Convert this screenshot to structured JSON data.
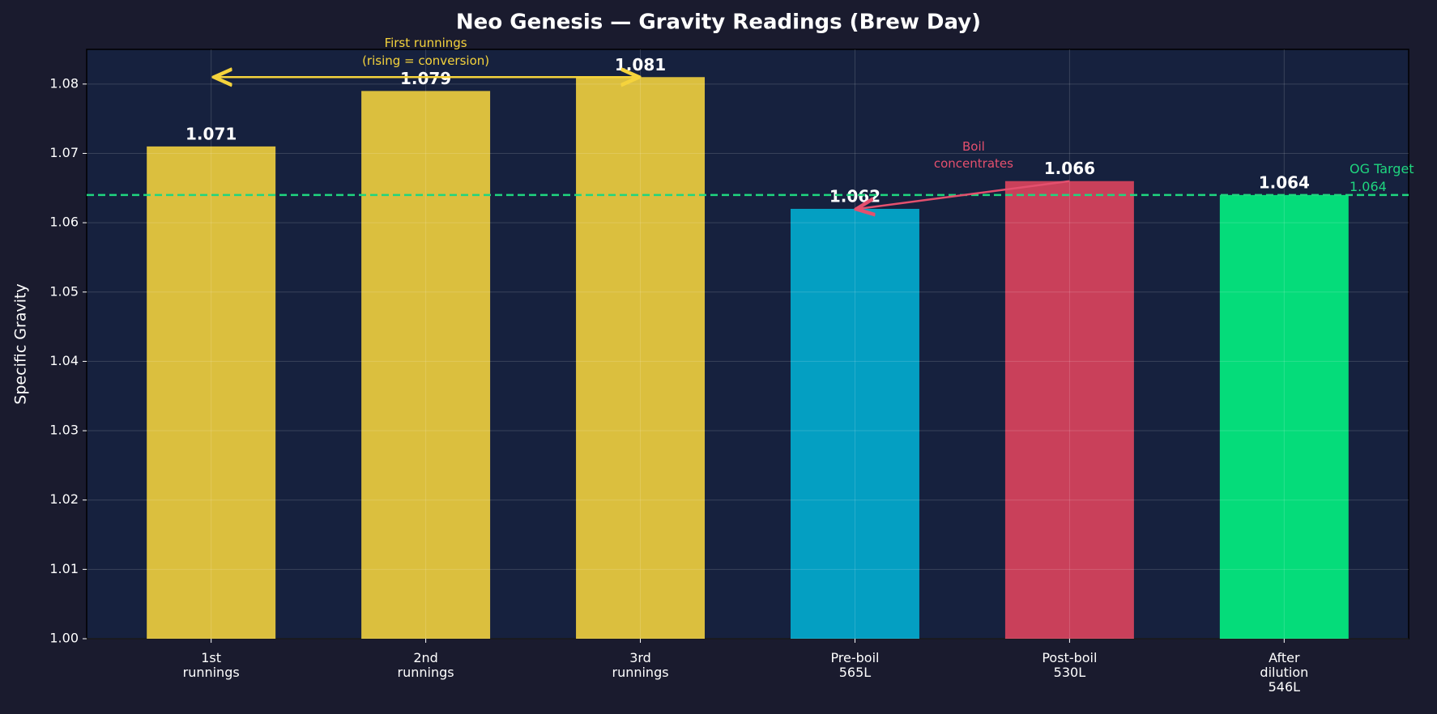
{
  "chart_data": {
    "type": "bar",
    "title": "Neo Genesis — Gravity Readings (Brew Day)",
    "y_label": "Specific Gravity",
    "categories": [
      "1st\nrunnings",
      "2nd\nrunnings",
      "3rd\nrunnings",
      "Pre-boil\n565L",
      "Post-boil\n530L",
      "After\ndilution\n546L"
    ],
    "values": [
      1.071,
      1.079,
      1.081,
      1.062,
      1.066,
      1.064
    ],
    "colors": [
      "#dbbf3e",
      "#dbbf3e",
      "#dbbf3e",
      "#049fc2",
      "#c9405a",
      "#05dc7a"
    ],
    "ylim": [
      1.0,
      1.085
    ],
    "yticks": [
      {
        "value": 1.0,
        "label": "1.00"
      },
      1.01,
      1.02,
      1.03,
      1.04,
      1.05,
      1.06,
      1.07,
      1.08
    ],
    "grid": true,
    "reference_line": {
      "value": 1.064,
      "label": "OG Target",
      "color": "#1fd67f"
    },
    "annotations": [
      {
        "text": "First runnings\n(rising = conversion)",
        "color": "#f5d33c"
      },
      {
        "text": "Boil\nconcentrates",
        "color": "#e4506e"
      }
    ]
  }
}
